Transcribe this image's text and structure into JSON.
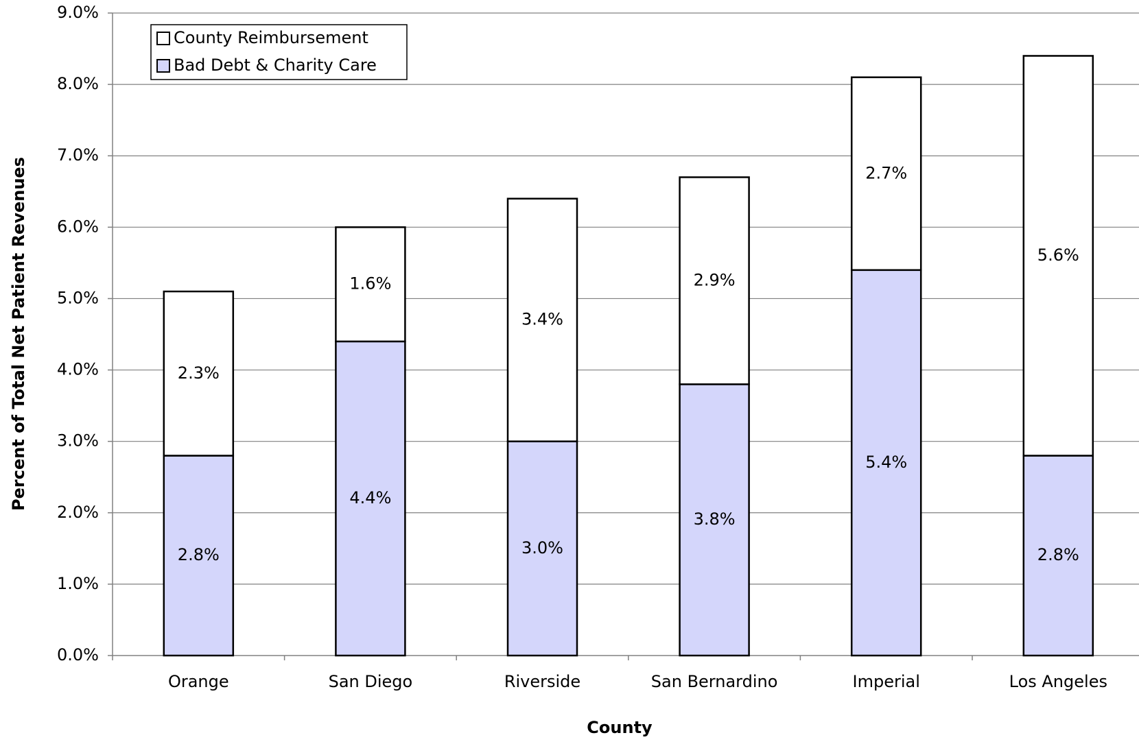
{
  "chart_data": {
    "type": "stacked_bar",
    "x_label": "County",
    "y_label": "Percent of Total Net Patient Revenues",
    "categories": [
      "Orange",
      "San Diego",
      "Riverside",
      "San Bernardino",
      "Imperial",
      "Los Angeles"
    ],
    "series": [
      {
        "name": "Bad Debt & Charity Care",
        "color": "#d4d6fb",
        "values": [
          2.8,
          4.4,
          3.0,
          3.8,
          5.4,
          2.8
        ],
        "value_labels": [
          "2.8%",
          "4.4%",
          "3.0%",
          "3.8%",
          "5.4%",
          "2.8%"
        ]
      },
      {
        "name": "County Reimbursement",
        "color": "#ffffff",
        "values": [
          2.3,
          1.6,
          3.4,
          2.9,
          2.7,
          5.6
        ],
        "value_labels": [
          "2.3%",
          "1.6%",
          "3.4%",
          "2.9%",
          "2.7%",
          "5.6%"
        ]
      }
    ],
    "ylim": [
      0,
      9
    ],
    "yticks": [
      {
        "value": 0,
        "label": "0.0%"
      },
      {
        "value": 1,
        "label": "1.0%"
      },
      {
        "value": 2,
        "label": "2.0%"
      },
      {
        "value": 3,
        "label": "3.0%"
      },
      {
        "value": 4,
        "label": "4.0%"
      },
      {
        "value": 5,
        "label": "5.0%"
      },
      {
        "value": 6,
        "label": "6.0%"
      },
      {
        "value": 7,
        "label": "7.0%"
      },
      {
        "value": 8,
        "label": "8.0%"
      },
      {
        "value": 9,
        "label": "9.0%"
      }
    ],
    "grid": true,
    "legend": "top-left"
  }
}
